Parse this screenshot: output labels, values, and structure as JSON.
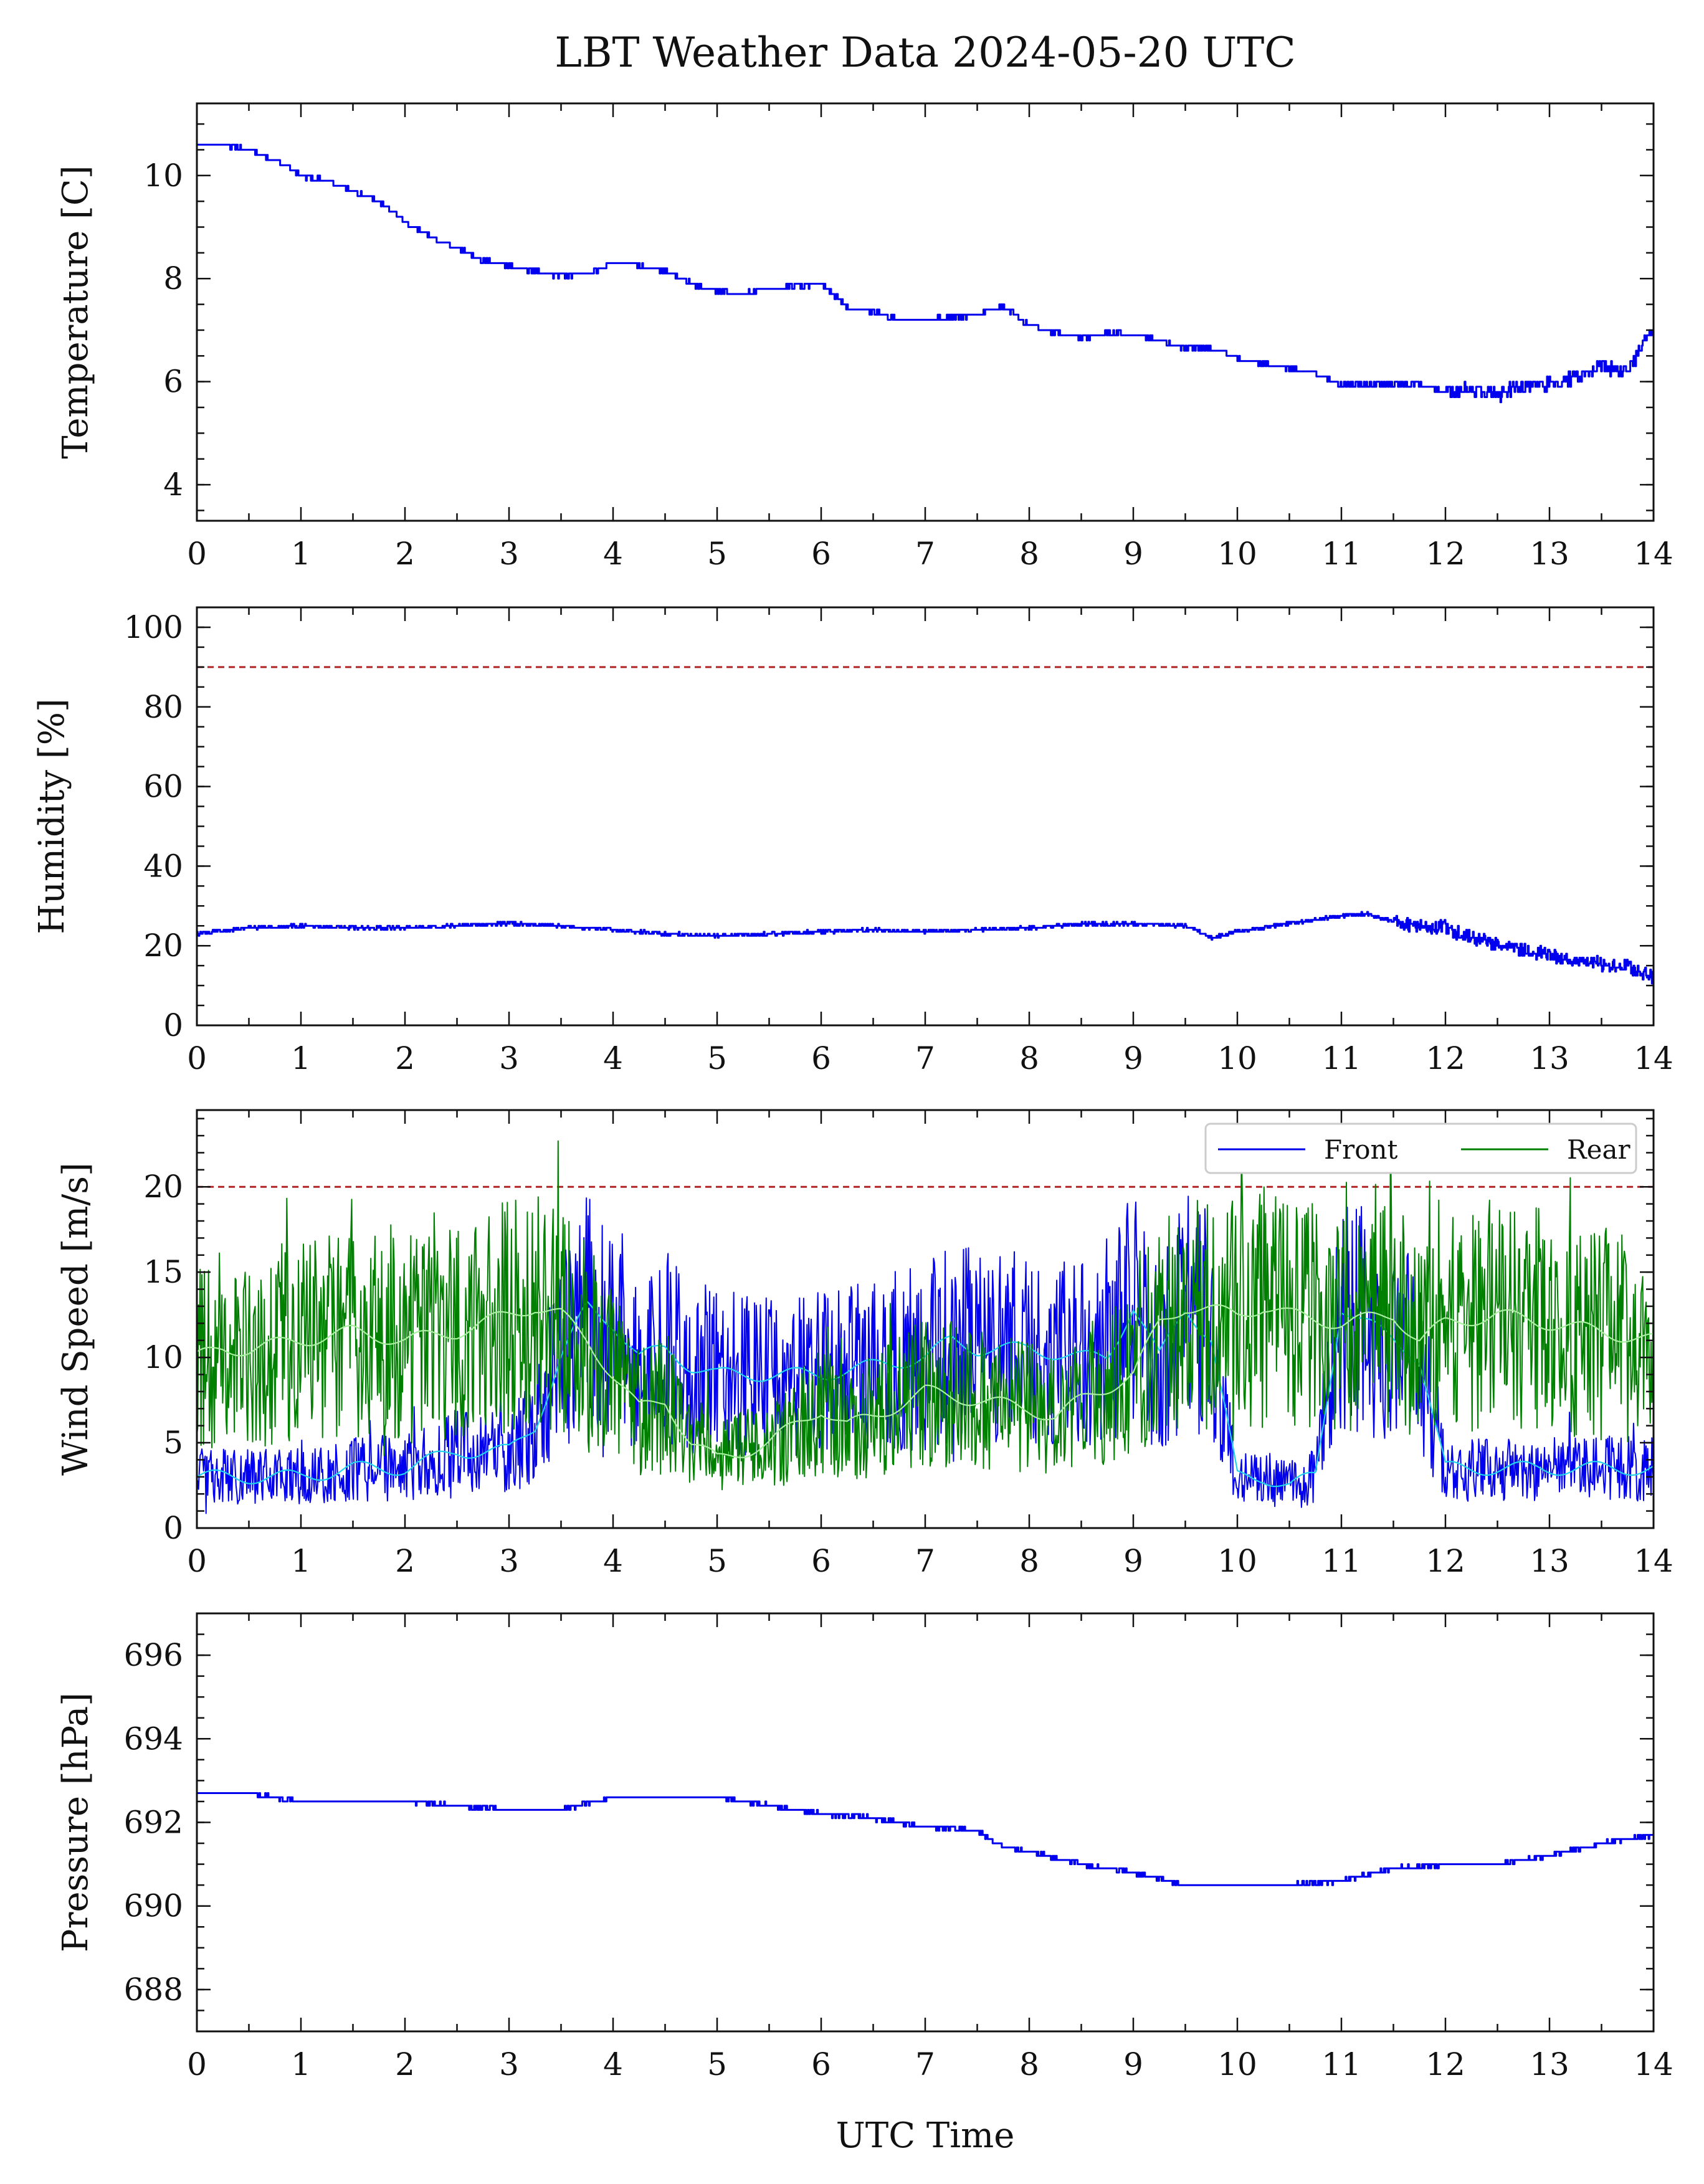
{
  "figure": {
    "title": "LBT Weather Data 2024-05-20 UTC",
    "xlabel": "UTC Time"
  },
  "chart_data": [
    {
      "type": "line",
      "id": "temperature",
      "title": "",
      "xlabel": "",
      "ylabel": "Temperature [C]",
      "xlim": [
        0,
        14
      ],
      "ylim": [
        3.3,
        11.4
      ],
      "xticks": [
        0,
        1,
        2,
        3,
        4,
        5,
        6,
        7,
        8,
        9,
        10,
        11,
        12,
        13,
        14
      ],
      "yticks": [
        4,
        6,
        8,
        10
      ],
      "grid": false,
      "series": [
        {
          "color": "#0000ee",
          "x": [
            0,
            0.25,
            0.5,
            0.75,
            1,
            1.25,
            1.5,
            1.75,
            2,
            2.25,
            2.5,
            2.75,
            3,
            3.25,
            3.5,
            3.75,
            4,
            4.25,
            4.5,
            4.75,
            5,
            5.25,
            5.5,
            5.75,
            6,
            6.25,
            6.5,
            6.75,
            7,
            7.25,
            7.5,
            7.75,
            8,
            8.25,
            8.5,
            8.75,
            9,
            9.25,
            9.5,
            9.75,
            10,
            10.25,
            10.5,
            10.75,
            11,
            11.25,
            11.5,
            11.75,
            12,
            12.25,
            12.5,
            12.75,
            13,
            13.25,
            13.5,
            13.75,
            14
          ],
          "y": [
            10.6,
            10.6,
            10.5,
            10.3,
            10.0,
            9.9,
            9.7,
            9.5,
            9.1,
            8.8,
            8.6,
            8.35,
            8.25,
            8.15,
            8.05,
            8.1,
            8.3,
            8.25,
            8.15,
            7.9,
            7.75,
            7.7,
            7.8,
            7.85,
            7.9,
            7.45,
            7.35,
            7.2,
            7.2,
            7.25,
            7.3,
            7.45,
            7.1,
            6.95,
            6.85,
            6.95,
            6.9,
            6.8,
            6.65,
            6.65,
            6.45,
            6.35,
            6.25,
            6.15,
            5.95,
            5.95,
            5.95,
            5.95,
            5.8,
            5.85,
            5.75,
            5.9,
            5.95,
            6.1,
            6.3,
            6.2,
            7.05
          ]
        }
      ]
    },
    {
      "type": "line",
      "id": "humidity",
      "title": "",
      "xlabel": "",
      "ylabel": "Humidity [%]",
      "xlim": [
        0,
        14
      ],
      "ylim": [
        0,
        105
      ],
      "xticks": [
        0,
        1,
        2,
        3,
        4,
        5,
        6,
        7,
        8,
        9,
        10,
        11,
        12,
        13,
        14
      ],
      "yticks": [
        0,
        20,
        40,
        60,
        80,
        100
      ],
      "grid": false,
      "reference_line": {
        "y": 90,
        "color": "#b22222",
        "style": "dashed"
      },
      "series": [
        {
          "color": "#0000ee",
          "x": [
            0,
            0.5,
            1,
            1.5,
            2,
            2.5,
            3,
            3.5,
            4,
            4.5,
            5,
            5.5,
            6,
            6.5,
            7,
            7.5,
            8,
            8.5,
            9,
            9.5,
            9.75,
            10,
            10.5,
            11,
            11.25,
            11.5,
            11.75,
            12,
            12.25,
            12.5,
            12.75,
            13,
            13.25,
            13.5,
            13.75,
            14
          ],
          "y": [
            23,
            24.5,
            25,
            24.5,
            24.5,
            25,
            25.5,
            25,
            24,
            23,
            22.5,
            23,
            23.5,
            24,
            23.5,
            24,
            24.5,
            25.5,
            25.5,
            25,
            22,
            23.5,
            25.5,
            27.5,
            28,
            26,
            25,
            24.5,
            22,
            20,
            19,
            17.5,
            16,
            15.5,
            14.5,
            12
          ]
        }
      ]
    },
    {
      "type": "line",
      "id": "wind",
      "title": "",
      "xlabel": "",
      "ylabel": "Wind Speed [m/s]",
      "xlim": [
        0,
        14
      ],
      "ylim": [
        0,
        24.5
      ],
      "xticks": [
        0,
        1,
        2,
        3,
        4,
        5,
        6,
        7,
        8,
        9,
        10,
        11,
        12,
        13,
        14
      ],
      "yticks": [
        0,
        5,
        10,
        15,
        20
      ],
      "grid": false,
      "legend_position": "top-right",
      "reference_line": {
        "y": 20,
        "color": "#b22222",
        "style": "dashed"
      },
      "series": [
        {
          "name": "Front",
          "color": "#0000ee",
          "x": [
            0,
            0.5,
            1,
            1.5,
            2,
            2.25,
            2.5,
            3,
            3.25,
            3.5,
            3.75,
            4,
            4.25,
            4.5,
            4.75,
            5,
            5.5,
            6,
            6.5,
            7,
            7.25,
            7.5,
            8,
            8.5,
            8.75,
            9,
            9.25,
            9.5,
            9.75,
            10,
            10.25,
            10.5,
            10.75,
            11,
            11.25,
            11.5,
            11.75,
            12,
            12.5,
            13,
            13.5,
            14
          ],
          "y": [
            3,
            3,
            3,
            3.5,
            3.5,
            4,
            4.5,
            4.5,
            6,
            10,
            13,
            12,
            10,
            10.5,
            9.5,
            9,
            9,
            9,
            9.5,
            10,
            11,
            10.5,
            10.5,
            10,
            10,
            13,
            10,
            13,
            11,
            3,
            3,
            2.5,
            3,
            13,
            12,
            11,
            10,
            3.5,
            3.5,
            3.5,
            3.5,
            3.5
          ]
        },
        {
          "name": "Rear",
          "color": "#008000",
          "x": [
            0,
            0.25,
            0.5,
            1,
            1.5,
            2,
            2.5,
            3,
            3.25,
            3.5,
            3.75,
            4,
            4.25,
            4.5,
            4.75,
            5,
            5.5,
            6,
            6.25,
            6.5,
            7,
            7.5,
            8,
            8.25,
            8.5,
            9,
            9.25,
            9.5,
            10,
            10.25,
            10.5,
            11,
            11.5,
            11.75,
            12,
            12.5,
            13,
            13.5,
            14
          ],
          "y": [
            10,
            10.5,
            10.5,
            11,
            11.5,
            11,
            11.5,
            12.5,
            13,
            12.5,
            11,
            9,
            7,
            7.5,
            5,
            4,
            5,
            7,
            6,
            6.5,
            8,
            7.5,
            7,
            6.5,
            7.5,
            9,
            12,
            13,
            12.5,
            13,
            12.5,
            12,
            12.5,
            11,
            12,
            12.5,
            12,
            11.5,
            11
          ]
        }
      ]
    },
    {
      "type": "line",
      "id": "pressure",
      "title": "",
      "xlabel": "UTC Time",
      "ylabel": "Pressure [hPa]",
      "xlim": [
        0,
        14
      ],
      "ylim": [
        687,
        697
      ],
      "xticks": [
        0,
        1,
        2,
        3,
        4,
        5,
        6,
        7,
        8,
        9,
        10,
        11,
        12,
        13,
        14
      ],
      "yticks": [
        688,
        690,
        692,
        694,
        696
      ],
      "grid": false,
      "series": [
        {
          "color": "#0000ee",
          "x": [
            0,
            0.5,
            1,
            1.5,
            2,
            2.5,
            3,
            3.5,
            4,
            4.5,
            5,
            5.5,
            6,
            6.5,
            7,
            7.5,
            7.75,
            8,
            8.5,
            9,
            9.5,
            10,
            10.5,
            11,
            11.5,
            12,
            12.5,
            13,
            13.5,
            14
          ],
          "y": [
            692.7,
            692.7,
            692.5,
            692.5,
            692.5,
            692.4,
            692.3,
            692.3,
            692.6,
            692.6,
            692.6,
            692.4,
            692.2,
            692.1,
            691.9,
            691.8,
            691.4,
            691.3,
            691.0,
            690.8,
            690.5,
            690.5,
            690.5,
            690.6,
            690.9,
            691.0,
            691.0,
            691.2,
            691.5,
            691.7
          ]
        }
      ]
    }
  ]
}
